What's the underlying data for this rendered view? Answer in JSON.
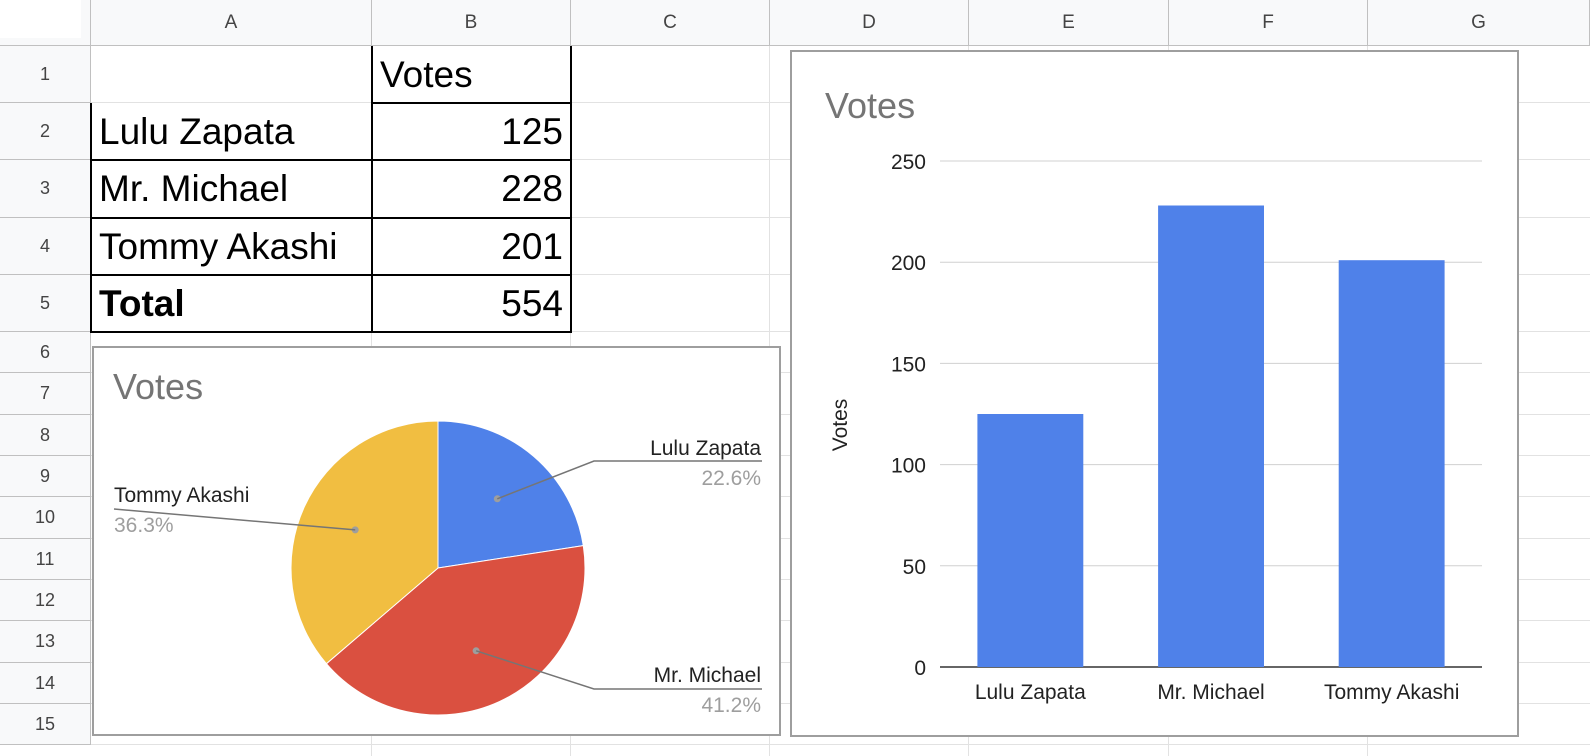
{
  "sheet": {
    "columns": [
      "A",
      "B",
      "C",
      "D",
      "E",
      "F",
      "G"
    ],
    "rows": [
      "1",
      "2",
      "3",
      "4",
      "5",
      "6",
      "7",
      "8",
      "9",
      "10",
      "11",
      "12",
      "13",
      "14",
      "15"
    ],
    "table": {
      "header": [
        "",
        "Votes"
      ],
      "rows": [
        {
          "name": "Lulu Zapata",
          "votes": "125"
        },
        {
          "name": "Mr. Michael",
          "votes": "228"
        },
        {
          "name": "Tommy Akashi",
          "votes": "201"
        }
      ],
      "total": {
        "name": "Total",
        "votes": "554"
      }
    }
  },
  "colors": {
    "blue": "#4f81e9",
    "red": "#da5040",
    "yellow": "#f1be41",
    "grid": "#d0d0d0",
    "percent_text": "#9e9e9e"
  },
  "chart_data": [
    {
      "type": "pie",
      "title": "Votes",
      "slices": [
        {
          "label": "Lulu Zapata",
          "value": 125,
          "percent": "22.6%",
          "color": "#4f81e9"
        },
        {
          "label": "Mr. Michael",
          "value": 228,
          "percent": "41.2%",
          "color": "#da5040"
        },
        {
          "label": "Tommy Akashi",
          "value": 201,
          "percent": "36.3%",
          "color": "#f1be41"
        }
      ],
      "legend": "labels-on-slices"
    },
    {
      "type": "bar",
      "title": "Votes",
      "categories": [
        "Lulu Zapata",
        "Mr. Michael",
        "Tommy Akashi"
      ],
      "values": [
        125,
        228,
        201
      ],
      "ylabel": "Votes",
      "ylim": [
        0,
        250
      ],
      "yticks": [
        "0",
        "50",
        "100",
        "150",
        "200",
        "250"
      ],
      "grid": true,
      "color": "#4f81e9"
    }
  ]
}
